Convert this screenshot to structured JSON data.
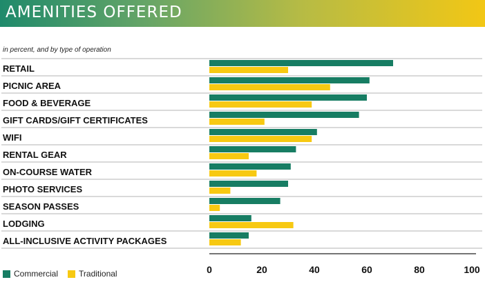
{
  "header": {
    "title": "AMENITIES OFFERED",
    "subtitle": "in percent, and by type of operation"
  },
  "colors": {
    "commercial": "#177d63",
    "traditional": "#f7c912",
    "grid": "#9a9a9a",
    "axis": "#222222"
  },
  "legend": {
    "items": [
      {
        "label": "Commercial",
        "color": "#177d63"
      },
      {
        "label": "Traditional",
        "color": "#f7c912"
      }
    ]
  },
  "chart_data": {
    "type": "bar",
    "orientation": "horizontal",
    "title": "AMENITIES OFFERED",
    "subtitle": "in percent, and by type of operation",
    "categories": [
      "RETAIL",
      "PICNIC AREA",
      "FOOD & BEVERAGE",
      "GIFT CARDS/GIFT CERTIFICATES",
      "WIFI",
      "RENTAL GEAR",
      "ON-COURSE WATER",
      "PHOTO SERVICES",
      "SEASON PASSES",
      "LODGING",
      "ALL-INCLUSIVE ACTIVITY PACKAGES"
    ],
    "series": [
      {
        "name": "Commercial",
        "values": [
          70,
          61,
          60,
          57,
          41,
          33,
          31,
          30,
          27,
          16,
          15
        ]
      },
      {
        "name": "Traditional",
        "values": [
          30,
          46,
          39,
          21,
          39,
          15,
          18,
          8,
          4,
          32,
          12
        ]
      }
    ],
    "xlim": [
      0,
      100
    ],
    "xticks": [
      0,
      20,
      40,
      60,
      80,
      100
    ],
    "legend_position": "bottom-left",
    "grid": false
  }
}
